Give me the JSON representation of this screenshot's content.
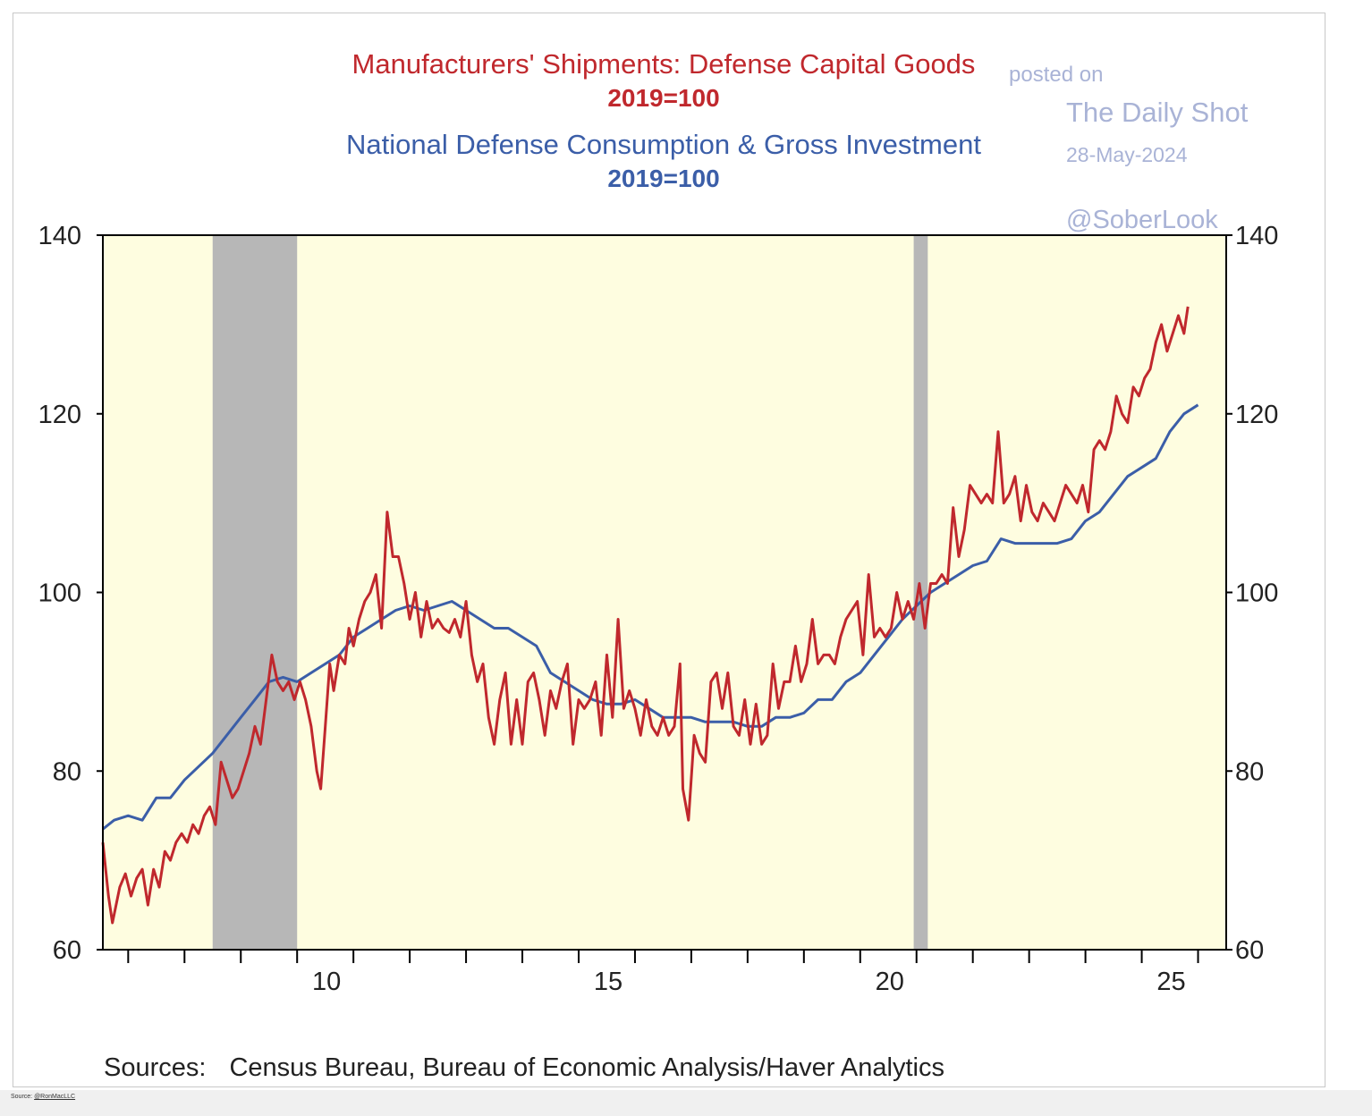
{
  "chart_data": {
    "type": "line",
    "title": "Manufacturers' Shipments: Defense Capital Goods",
    "title_index_note": "2019=100",
    "title2": "National Defense Consumption & Gross Investment",
    "title2_index_note": "2019=100",
    "xlim": [
      2005.55,
      2025.5
    ],
    "ylim": [
      60,
      140
    ],
    "y_ticks": [
      60,
      80,
      100,
      120,
      140
    ],
    "x_tick_labels": [
      {
        "value": 2010,
        "label": "10"
      },
      {
        "value": 2015,
        "label": "15"
      },
      {
        "value": 2020,
        "label": "20"
      },
      {
        "value": 2025,
        "label": "25"
      }
    ],
    "recessions": [
      [
        2007.5,
        2009.0
      ],
      [
        2019.95,
        2020.2
      ]
    ],
    "series": [
      {
        "name": "Manufacturers' Shipments: Defense Capital Goods",
        "color": "#c0282d",
        "points": [
          [
            2005.55,
            72
          ],
          [
            2005.65,
            66
          ],
          [
            2005.72,
            63
          ],
          [
            2005.85,
            67
          ],
          [
            2005.95,
            68.5
          ],
          [
            2006.05,
            66
          ],
          [
            2006.15,
            68
          ],
          [
            2006.25,
            69
          ],
          [
            2006.35,
            65
          ],
          [
            2006.45,
            69
          ],
          [
            2006.55,
            67
          ],
          [
            2006.65,
            71
          ],
          [
            2006.75,
            70
          ],
          [
            2006.85,
            72
          ],
          [
            2006.95,
            73
          ],
          [
            2007.05,
            72
          ],
          [
            2007.15,
            74
          ],
          [
            2007.25,
            73
          ],
          [
            2007.35,
            75
          ],
          [
            2007.45,
            76
          ],
          [
            2007.55,
            74
          ],
          [
            2007.65,
            81
          ],
          [
            2007.75,
            79
          ],
          [
            2007.85,
            77
          ],
          [
            2007.95,
            78
          ],
          [
            2008.05,
            80
          ],
          [
            2008.15,
            82
          ],
          [
            2008.25,
            85
          ],
          [
            2008.35,
            83
          ],
          [
            2008.45,
            88
          ],
          [
            2008.55,
            93
          ],
          [
            2008.65,
            90
          ],
          [
            2008.75,
            89
          ],
          [
            2008.85,
            90
          ],
          [
            2008.95,
            88
          ],
          [
            2009.05,
            90
          ],
          [
            2009.15,
            88
          ],
          [
            2009.25,
            85
          ],
          [
            2009.35,
            80
          ],
          [
            2009.42,
            78
          ],
          [
            2009.5,
            85
          ],
          [
            2009.58,
            92
          ],
          [
            2009.65,
            89
          ],
          [
            2009.75,
            93
          ],
          [
            2009.85,
            92
          ],
          [
            2009.92,
            96
          ],
          [
            2010.0,
            94
          ],
          [
            2010.1,
            97
          ],
          [
            2010.2,
            99
          ],
          [
            2010.3,
            100
          ],
          [
            2010.4,
            102
          ],
          [
            2010.5,
            96
          ],
          [
            2010.6,
            109
          ],
          [
            2010.7,
            104
          ],
          [
            2010.8,
            104
          ],
          [
            2010.9,
            101
          ],
          [
            2011.0,
            97
          ],
          [
            2011.1,
            100
          ],
          [
            2011.2,
            95
          ],
          [
            2011.3,
            99
          ],
          [
            2011.4,
            96
          ],
          [
            2011.5,
            97
          ],
          [
            2011.6,
            96
          ],
          [
            2011.7,
            95.5
          ],
          [
            2011.8,
            97
          ],
          [
            2011.9,
            95
          ],
          [
            2012.0,
            99
          ],
          [
            2012.1,
            93
          ],
          [
            2012.2,
            90
          ],
          [
            2012.3,
            92
          ],
          [
            2012.4,
            86
          ],
          [
            2012.5,
            83
          ],
          [
            2012.6,
            88
          ],
          [
            2012.7,
            91
          ],
          [
            2012.8,
            83
          ],
          [
            2012.9,
            88
          ],
          [
            2013.0,
            83
          ],
          [
            2013.1,
            90
          ],
          [
            2013.2,
            91
          ],
          [
            2013.3,
            88
          ],
          [
            2013.4,
            84
          ],
          [
            2013.5,
            89
          ],
          [
            2013.6,
            87
          ],
          [
            2013.7,
            90
          ],
          [
            2013.8,
            92
          ],
          [
            2013.9,
            83
          ],
          [
            2014.0,
            88
          ],
          [
            2014.1,
            87
          ],
          [
            2014.2,
            88
          ],
          [
            2014.3,
            90
          ],
          [
            2014.4,
            84
          ],
          [
            2014.5,
            93
          ],
          [
            2014.6,
            86
          ],
          [
            2014.7,
            97
          ],
          [
            2014.8,
            87
          ],
          [
            2014.9,
            89
          ],
          [
            2015.0,
            87
          ],
          [
            2015.1,
            84
          ],
          [
            2015.2,
            88
          ],
          [
            2015.3,
            85
          ],
          [
            2015.4,
            84
          ],
          [
            2015.5,
            86
          ],
          [
            2015.6,
            84
          ],
          [
            2015.7,
            85
          ],
          [
            2015.8,
            92
          ],
          [
            2015.85,
            78
          ],
          [
            2015.95,
            74.5
          ],
          [
            2016.05,
            84
          ],
          [
            2016.15,
            82
          ],
          [
            2016.25,
            81
          ],
          [
            2016.35,
            90
          ],
          [
            2016.45,
            91
          ],
          [
            2016.55,
            87
          ],
          [
            2016.65,
            91
          ],
          [
            2016.75,
            85
          ],
          [
            2016.85,
            84
          ],
          [
            2016.95,
            88
          ],
          [
            2017.05,
            83
          ],
          [
            2017.15,
            87.5
          ],
          [
            2017.25,
            83
          ],
          [
            2017.35,
            84
          ],
          [
            2017.45,
            92
          ],
          [
            2017.55,
            87
          ],
          [
            2017.65,
            90
          ],
          [
            2017.75,
            90
          ],
          [
            2017.85,
            94
          ],
          [
            2017.95,
            90
          ],
          [
            2018.05,
            92
          ],
          [
            2018.15,
            97
          ],
          [
            2018.25,
            92
          ],
          [
            2018.35,
            93
          ],
          [
            2018.45,
            93
          ],
          [
            2018.55,
            92
          ],
          [
            2018.65,
            95
          ],
          [
            2018.75,
            97
          ],
          [
            2018.85,
            98
          ],
          [
            2018.95,
            99
          ],
          [
            2019.05,
            93
          ],
          [
            2019.15,
            102
          ],
          [
            2019.25,
            95
          ],
          [
            2019.35,
            96
          ],
          [
            2019.45,
            95
          ],
          [
            2019.55,
            96
          ],
          [
            2019.65,
            100
          ],
          [
            2019.75,
            97
          ],
          [
            2019.85,
            99
          ],
          [
            2019.95,
            97
          ],
          [
            2020.05,
            101
          ],
          [
            2020.15,
            96
          ],
          [
            2020.25,
            101
          ],
          [
            2020.35,
            101
          ],
          [
            2020.45,
            102
          ],
          [
            2020.55,
            101
          ],
          [
            2020.65,
            109.5
          ],
          [
            2020.75,
            104
          ],
          [
            2020.85,
            107
          ],
          [
            2020.95,
            112
          ],
          [
            2021.05,
            111
          ],
          [
            2021.15,
            110
          ],
          [
            2021.25,
            111
          ],
          [
            2021.35,
            110
          ],
          [
            2021.45,
            118
          ],
          [
            2021.55,
            110
          ],
          [
            2021.65,
            111
          ],
          [
            2021.75,
            113
          ],
          [
            2021.85,
            108
          ],
          [
            2021.95,
            112
          ],
          [
            2022.05,
            109
          ],
          [
            2022.15,
            108
          ],
          [
            2022.25,
            110
          ],
          [
            2022.35,
            109
          ],
          [
            2022.45,
            108
          ],
          [
            2022.55,
            110
          ],
          [
            2022.65,
            112
          ],
          [
            2022.75,
            111
          ],
          [
            2022.85,
            110
          ],
          [
            2022.95,
            112
          ],
          [
            2023.05,
            109
          ],
          [
            2023.15,
            116
          ],
          [
            2023.25,
            117
          ],
          [
            2023.35,
            116
          ],
          [
            2023.45,
            118
          ],
          [
            2023.55,
            122
          ],
          [
            2023.65,
            120
          ],
          [
            2023.75,
            119
          ],
          [
            2023.85,
            123
          ],
          [
            2023.95,
            122
          ],
          [
            2024.05,
            124
          ],
          [
            2024.15,
            125
          ],
          [
            2024.25,
            128
          ],
          [
            2024.35,
            130
          ],
          [
            2024.45,
            127
          ],
          [
            2024.55,
            129
          ],
          [
            2024.65,
            131
          ],
          [
            2024.75,
            129
          ],
          [
            2024.82,
            132
          ]
        ]
      },
      {
        "name": "National Defense Consumption & Gross Investment",
        "color": "#3b5ea8",
        "points": [
          [
            2005.55,
            73.5
          ],
          [
            2005.75,
            74.5
          ],
          [
            2006.0,
            75
          ],
          [
            2006.25,
            74.5
          ],
          [
            2006.5,
            77
          ],
          [
            2006.75,
            77
          ],
          [
            2007.0,
            79
          ],
          [
            2007.25,
            80.5
          ],
          [
            2007.5,
            82
          ],
          [
            2007.75,
            84
          ],
          [
            2008.0,
            86
          ],
          [
            2008.25,
            88
          ],
          [
            2008.5,
            90
          ],
          [
            2008.75,
            90.5
          ],
          [
            2009.0,
            90
          ],
          [
            2009.25,
            91
          ],
          [
            2009.5,
            92
          ],
          [
            2009.75,
            93
          ],
          [
            2010.0,
            95
          ],
          [
            2010.25,
            96
          ],
          [
            2010.5,
            97
          ],
          [
            2010.75,
            98
          ],
          [
            2011.0,
            98.5
          ],
          [
            2011.25,
            98
          ],
          [
            2011.5,
            98.5
          ],
          [
            2011.75,
            99
          ],
          [
            2012.0,
            98
          ],
          [
            2012.25,
            97
          ],
          [
            2012.5,
            96
          ],
          [
            2012.75,
            96
          ],
          [
            2013.0,
            95
          ],
          [
            2013.25,
            94
          ],
          [
            2013.5,
            91
          ],
          [
            2013.75,
            90
          ],
          [
            2014.0,
            89
          ],
          [
            2014.25,
            88
          ],
          [
            2014.5,
            87.5
          ],
          [
            2014.75,
            87.5
          ],
          [
            2015.0,
            88
          ],
          [
            2015.25,
            87
          ],
          [
            2015.5,
            86
          ],
          [
            2015.75,
            86
          ],
          [
            2016.0,
            86
          ],
          [
            2016.25,
            85.5
          ],
          [
            2016.5,
            85.5
          ],
          [
            2016.75,
            85.5
          ],
          [
            2017.0,
            85
          ],
          [
            2017.25,
            85
          ],
          [
            2017.5,
            86
          ],
          [
            2017.75,
            86
          ],
          [
            2018.0,
            86.5
          ],
          [
            2018.25,
            88
          ],
          [
            2018.5,
            88
          ],
          [
            2018.75,
            90
          ],
          [
            2019.0,
            91
          ],
          [
            2019.25,
            93
          ],
          [
            2019.5,
            95
          ],
          [
            2019.75,
            97
          ],
          [
            2020.0,
            98.5
          ],
          [
            2020.25,
            100
          ],
          [
            2020.5,
            101
          ],
          [
            2020.75,
            102
          ],
          [
            2021.0,
            103
          ],
          [
            2021.25,
            103.5
          ],
          [
            2021.5,
            106
          ],
          [
            2021.75,
            105.5
          ],
          [
            2022.0,
            105.5
          ],
          [
            2022.25,
            105.5
          ],
          [
            2022.5,
            105.5
          ],
          [
            2022.75,
            106
          ],
          [
            2023.0,
            108
          ],
          [
            2023.25,
            109
          ],
          [
            2023.5,
            111
          ],
          [
            2023.75,
            113
          ],
          [
            2024.0,
            114
          ],
          [
            2024.25,
            115
          ],
          [
            2024.5,
            118
          ],
          [
            2024.75,
            120
          ],
          [
            2025.0,
            121
          ]
        ]
      }
    ],
    "sources_label": "Sources:",
    "sources_text": "Census Bureau, Bureau of Economic Analysis/Haver Analytics"
  },
  "watermark": {
    "posted": "posted on",
    "name": "The Daily Shot",
    "date": "28-May-2024",
    "handle": "@SoberLook"
  },
  "footer": {
    "prefix": "Source: ",
    "handle": "@RonMacLLC"
  },
  "colors": {
    "plot_background": "#fefde0",
    "recession_shade": "#b7b7b7",
    "red_series": "#c0282d",
    "blue_series": "#3b5ea8"
  }
}
